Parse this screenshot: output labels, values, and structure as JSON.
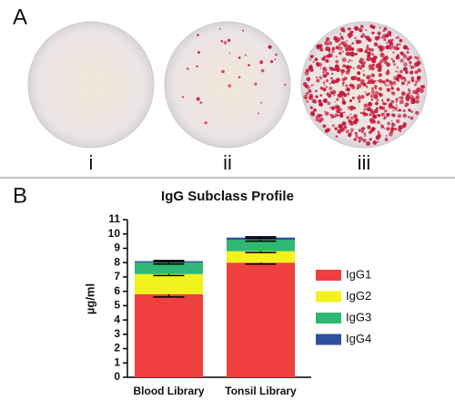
{
  "panels": {
    "a": "A",
    "b": "B"
  },
  "wells": [
    "i",
    "ii",
    "iii"
  ],
  "chart_data": {
    "type": "stacked_bar",
    "title": "IgG Subclass Profile",
    "y_label": "µg/ml",
    "categories": [
      "Blood Library",
      "Tonsil Library"
    ],
    "series": [
      {
        "name": "IgG1",
        "color": "#ef3f3f",
        "values": [
          5.8,
          8.0
        ],
        "errors": [
          0.2,
          0.1
        ]
      },
      {
        "name": "IgG2",
        "color": "#f2f21e",
        "values": [
          1.4,
          0.8
        ],
        "errors": [
          0.1,
          0.1
        ]
      },
      {
        "name": "IgG3",
        "color": "#2fb873",
        "values": [
          0.8,
          0.8
        ],
        "errors": [
          0.1,
          0.1
        ]
      },
      {
        "name": "IgG4",
        "color": "#2f4f9f",
        "values": [
          0.1,
          0.15
        ],
        "errors": [
          0.05,
          0.05
        ]
      }
    ],
    "ylim": [
      0,
      11
    ],
    "yticks": [
      0,
      1,
      2,
      3,
      4,
      5,
      6,
      7,
      8,
      9,
      10,
      11
    ]
  }
}
